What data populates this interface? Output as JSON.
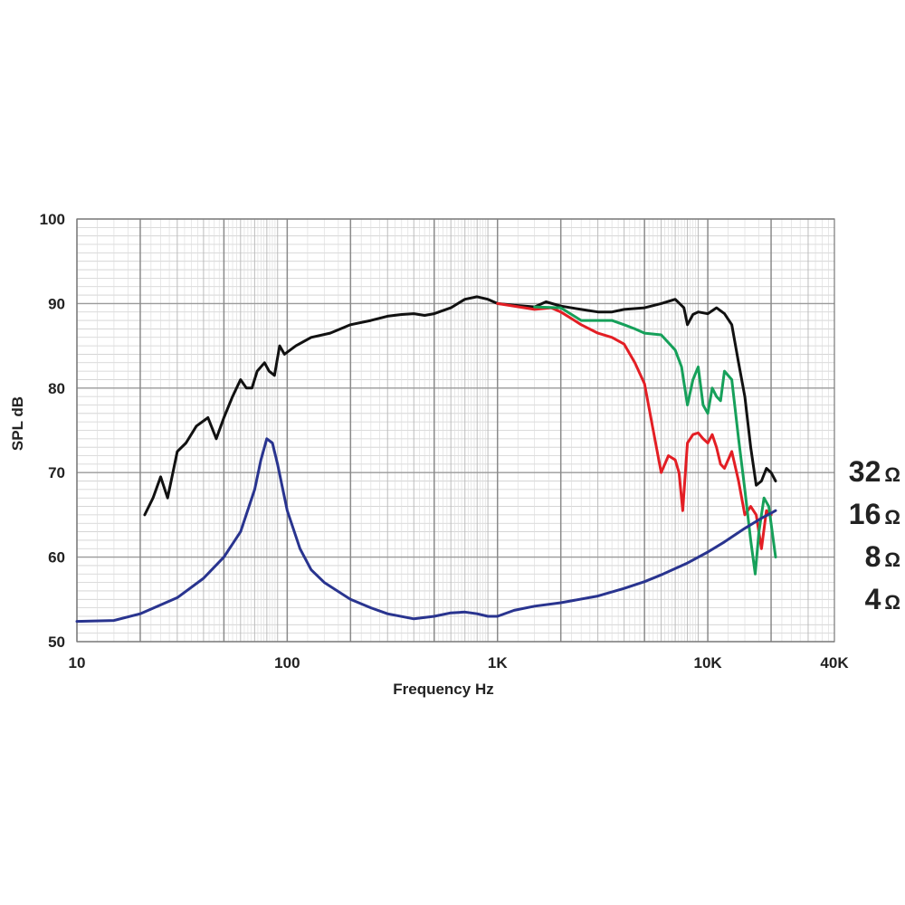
{
  "chart_data": {
    "type": "line",
    "title": "",
    "xlabel": "Frequency Hz",
    "ylabel": "SPL dB",
    "x_scale": "log",
    "xlim": [
      10,
      40000
    ],
    "ylim": [
      50,
      100
    ],
    "grid": true,
    "legend_placement": "right",
    "x_ticks": [
      {
        "value": 10,
        "label": "10"
      },
      {
        "value": 100,
        "label": "100"
      },
      {
        "value": 1000,
        "label": "1K"
      },
      {
        "value": 10000,
        "label": "10K"
      },
      {
        "value": 40000,
        "label": "40K"
      }
    ],
    "y_ticks": [
      {
        "value": 50,
        "label": "50"
      },
      {
        "value": 60,
        "label": "60"
      },
      {
        "value": 70,
        "label": "70"
      },
      {
        "value": 80,
        "label": "80"
      },
      {
        "value": 90,
        "label": "90"
      },
      {
        "value": 100,
        "label": "100"
      }
    ],
    "legend": [
      {
        "number": "32",
        "unit": "Ω"
      },
      {
        "number": "16",
        "unit": "Ω"
      },
      {
        "number": "8",
        "unit": "Ω"
      },
      {
        "number": "4",
        "unit": "Ω"
      }
    ],
    "series": [
      {
        "color": "#111111",
        "points": [
          [
            21,
            65
          ],
          [
            23,
            67
          ],
          [
            25,
            69.5
          ],
          [
            27,
            67
          ],
          [
            30,
            72.5
          ],
          [
            33,
            73.5
          ],
          [
            37,
            75.5
          ],
          [
            42,
            76.5
          ],
          [
            46,
            74
          ],
          [
            50,
            76.5
          ],
          [
            55,
            79
          ],
          [
            60,
            81
          ],
          [
            64,
            80
          ],
          [
            68,
            80
          ],
          [
            72,
            82
          ],
          [
            78,
            83
          ],
          [
            82,
            82
          ],
          [
            87,
            81.5
          ],
          [
            92,
            85
          ],
          [
            97,
            84
          ],
          [
            110,
            85
          ],
          [
            130,
            86
          ],
          [
            160,
            86.5
          ],
          [
            200,
            87.5
          ],
          [
            250,
            88
          ],
          [
            300,
            88.5
          ],
          [
            350,
            88.7
          ],
          [
            400,
            88.8
          ],
          [
            450,
            88.6
          ],
          [
            500,
            88.8
          ],
          [
            600,
            89.5
          ],
          [
            700,
            90.5
          ],
          [
            800,
            90.8
          ],
          [
            900,
            90.5
          ],
          [
            1000,
            90
          ],
          [
            1200,
            89.8
          ],
          [
            1500,
            89.6
          ],
          [
            1700,
            90.2
          ],
          [
            2000,
            89.7
          ],
          [
            2500,
            89.3
          ],
          [
            3000,
            89
          ],
          [
            3500,
            89
          ],
          [
            4000,
            89.3
          ],
          [
            5000,
            89.5
          ],
          [
            6000,
            90
          ],
          [
            7000,
            90.5
          ],
          [
            7700,
            89.5
          ],
          [
            8000,
            87.5
          ],
          [
            8500,
            88.7
          ],
          [
            9000,
            89
          ],
          [
            10000,
            88.8
          ],
          [
            11000,
            89.5
          ],
          [
            12000,
            88.8
          ],
          [
            13000,
            87.5
          ],
          [
            14000,
            83
          ],
          [
            15000,
            79
          ],
          [
            16000,
            73
          ],
          [
            17000,
            68.5
          ],
          [
            18000,
            69
          ],
          [
            19000,
            70.5
          ],
          [
            20000,
            70
          ],
          [
            21000,
            69
          ]
        ]
      },
      {
        "color": "#e31e24",
        "points": [
          [
            1000,
            90
          ],
          [
            1500,
            89.3
          ],
          [
            1800,
            89.5
          ],
          [
            2000,
            89
          ],
          [
            2500,
            87.5
          ],
          [
            3000,
            86.5
          ],
          [
            3500,
            86
          ],
          [
            4000,
            85.2
          ],
          [
            4500,
            83
          ],
          [
            5000,
            80.5
          ],
          [
            5500,
            75
          ],
          [
            6000,
            70
          ],
          [
            6500,
            72
          ],
          [
            7000,
            71.5
          ],
          [
            7300,
            70
          ],
          [
            7600,
            65.5
          ],
          [
            8000,
            73.5
          ],
          [
            8500,
            74.5
          ],
          [
            9000,
            74.7
          ],
          [
            9500,
            74
          ],
          [
            10000,
            73.5
          ],
          [
            10500,
            74.5
          ],
          [
            11000,
            73
          ],
          [
            11500,
            71
          ],
          [
            12000,
            70.5
          ],
          [
            13000,
            72.5
          ],
          [
            14000,
            69
          ],
          [
            15000,
            65
          ],
          [
            16000,
            66
          ],
          [
            17000,
            65
          ],
          [
            18000,
            61
          ],
          [
            19000,
            65.5
          ],
          [
            20000,
            65
          ]
        ]
      },
      {
        "color": "#16a05a",
        "points": [
          [
            1500,
            89.6
          ],
          [
            2000,
            89.5
          ],
          [
            2500,
            88
          ],
          [
            3000,
            88
          ],
          [
            3500,
            88
          ],
          [
            4000,
            87.5
          ],
          [
            4500,
            87
          ],
          [
            5000,
            86.5
          ],
          [
            6000,
            86.3
          ],
          [
            7000,
            84.5
          ],
          [
            7500,
            82.5
          ],
          [
            8000,
            78
          ],
          [
            8500,
            81
          ],
          [
            9000,
            82.5
          ],
          [
            9500,
            78
          ],
          [
            10000,
            77
          ],
          [
            10500,
            80
          ],
          [
            11000,
            79
          ],
          [
            11500,
            78.5
          ],
          [
            12000,
            82
          ],
          [
            13000,
            81
          ],
          [
            14000,
            74
          ],
          [
            15000,
            68
          ],
          [
            16000,
            62
          ],
          [
            16800,
            58
          ],
          [
            17500,
            63
          ],
          [
            18500,
            67
          ],
          [
            19500,
            66
          ],
          [
            20500,
            62
          ],
          [
            21000,
            60
          ]
        ]
      },
      {
        "color": "#29348f",
        "points": [
          [
            10,
            52.4
          ],
          [
            15,
            52.5
          ],
          [
            20,
            53.3
          ],
          [
            30,
            55.2
          ],
          [
            40,
            57.5
          ],
          [
            50,
            60
          ],
          [
            60,
            63
          ],
          [
            70,
            68
          ],
          [
            75,
            71.5
          ],
          [
            80,
            74
          ],
          [
            85,
            73.5
          ],
          [
            90,
            71
          ],
          [
            100,
            65.5
          ],
          [
            115,
            61
          ],
          [
            130,
            58.5
          ],
          [
            150,
            57
          ],
          [
            200,
            55
          ],
          [
            250,
            54
          ],
          [
            300,
            53.3
          ],
          [
            400,
            52.7
          ],
          [
            500,
            53
          ],
          [
            600,
            53.4
          ],
          [
            700,
            53.5
          ],
          [
            800,
            53.3
          ],
          [
            900,
            53
          ],
          [
            1000,
            53
          ],
          [
            1200,
            53.7
          ],
          [
            1500,
            54.2
          ],
          [
            2000,
            54.6
          ],
          [
            3000,
            55.4
          ],
          [
            4000,
            56.3
          ],
          [
            5000,
            57.1
          ],
          [
            6000,
            57.9
          ],
          [
            8000,
            59.3
          ],
          [
            10000,
            60.6
          ],
          [
            12000,
            61.8
          ],
          [
            15000,
            63.4
          ],
          [
            18000,
            64.6
          ],
          [
            20000,
            65.2
          ],
          [
            21000,
            65.5
          ]
        ]
      }
    ]
  }
}
